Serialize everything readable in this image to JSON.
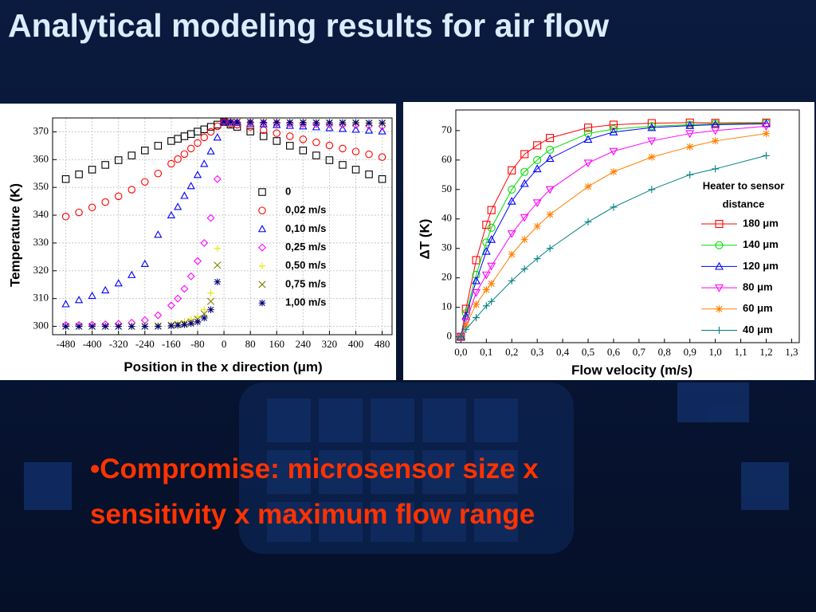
{
  "title": "Analytical modeling results for air flow",
  "bullet_lines": [
    "•Compromise: microsensor size x",
    "sensitivity x maximum flow range"
  ],
  "chart_data": [
    {
      "type": "scatter",
      "x_label": "Position in the x direction  (μm)",
      "y_label": "Temperature   (K)",
      "xlim": [
        -520,
        510
      ],
      "ylim": [
        297,
        375
      ],
      "xticks": [
        -480,
        -400,
        -320,
        -240,
        -160,
        -80,
        0,
        80,
        160,
        240,
        320,
        400,
        480
      ],
      "yticks": [
        300,
        310,
        320,
        330,
        340,
        350,
        360,
        370
      ],
      "grid": true,
      "x": [
        -480,
        -440,
        -400,
        -360,
        -320,
        -280,
        -240,
        -200,
        -160,
        -140,
        -120,
        -100,
        -80,
        -60,
        -40,
        -20,
        0,
        20,
        40,
        80,
        120,
        160,
        200,
        240,
        280,
        320,
        360,
        400,
        440,
        480
      ],
      "series": [
        {
          "name": "0",
          "color": "#000000",
          "marker": "square",
          "values": [
            353.0,
            354.7,
            356.4,
            358.1,
            359.8,
            361.5,
            363.3,
            365.0,
            366.7,
            367.5,
            368.4,
            369.2,
            370.1,
            370.9,
            371.8,
            372.6,
            373.5,
            372.6,
            371.8,
            370.1,
            368.4,
            366.7,
            365.0,
            363.3,
            361.5,
            359.8,
            358.1,
            356.4,
            354.7,
            353.0
          ]
        },
        {
          "name": "0,02 m/s",
          "color": "#ff0000",
          "marker": "circle",
          "values": [
            339.5,
            341,
            342.8,
            344.7,
            346.8,
            349.2,
            352,
            355,
            358.5,
            360.2,
            362,
            364,
            366,
            368,
            370,
            372,
            373.5,
            373,
            372.6,
            371.8,
            370.6,
            369.5,
            368.4,
            367.3,
            366.2,
            365.1,
            364,
            362.9,
            361.9,
            360.9
          ]
        },
        {
          "name": "0,10 m/s",
          "color": "#0000ff",
          "marker": "triangle",
          "values": [
            308,
            309.5,
            311,
            313,
            315.5,
            318.5,
            322.5,
            333,
            340,
            343,
            347,
            350.5,
            354.5,
            358.5,
            363,
            368,
            373.5,
            373.4,
            373.3,
            373,
            372.8,
            372.5,
            372.2,
            372,
            371.7,
            371.4,
            371.1,
            370.8,
            370.5,
            370.2
          ]
        },
        {
          "name": "0,25 m/s",
          "color": "#ff00ff",
          "marker": "diamond",
          "values": [
            300.5,
            300.5,
            300.6,
            300.7,
            300.9,
            301.3,
            302.2,
            304,
            307.5,
            310,
            313.5,
            318,
            323.5,
            330,
            339,
            353,
            373.5,
            373.5,
            373.4,
            373.3,
            373.2,
            373.1,
            373,
            372.9,
            372.8,
            372.7,
            372.6,
            372.4,
            372.2,
            372
          ]
        },
        {
          "name": "0,50 m/s",
          "color": "#e6e600",
          "marker": "plus",
          "values": [
            300,
            300,
            300,
            300,
            300,
            300,
            300.1,
            300.3,
            300.8,
            301.2,
            301.8,
            302.5,
            303.5,
            306,
            312,
            328,
            373.5,
            373.5,
            373.5,
            373.4,
            373.4,
            373.3,
            373.3,
            373.2,
            373.2,
            373.1,
            373.1,
            373,
            373,
            372.9
          ]
        },
        {
          "name": "0,75 m/s",
          "color": "#808000",
          "marker": "cross",
          "values": [
            300,
            300,
            300,
            300,
            300,
            300,
            300,
            300.1,
            300.4,
            300.7,
            301,
            301.6,
            302.5,
            304.5,
            309,
            322,
            373.5,
            373.5,
            373.5,
            373.4,
            373.4,
            373.4,
            373.3,
            373.3,
            373.3,
            373.2,
            373.2,
            373.2,
            373.1,
            373.1
          ]
        },
        {
          "name": "1,00 m/s",
          "color": "#000080",
          "marker": "star",
          "values": [
            300,
            300,
            300,
            300,
            300,
            300,
            300,
            300,
            300.2,
            300.4,
            300.6,
            301,
            301.6,
            303,
            306,
            316,
            373.5,
            373.5,
            373.5,
            373.5,
            373.4,
            373.4,
            373.4,
            373.4,
            373.3,
            373.3,
            373.3,
            373.3,
            373.2,
            373.2
          ]
        }
      ]
    },
    {
      "type": "line",
      "x_label": "Flow velocity  (m/s)",
      "y_label": "ΔT (K)",
      "legend_title": [
        "Heater to sensor",
        "distance"
      ],
      "xlim": [
        -0.02,
        1.33
      ],
      "ylim": [
        -2,
        77
      ],
      "xticks": [
        {
          "value": 0,
          "label": "0,0"
        },
        {
          "value": 0.1,
          "label": "0,1"
        },
        {
          "value": 0.2,
          "label": "0,2"
        },
        {
          "value": 0.3,
          "label": "0,3"
        },
        {
          "value": 0.4,
          "label": "0,4"
        },
        {
          "value": 0.5,
          "label": "0,5"
        },
        {
          "value": 0.6,
          "label": "0,6"
        },
        {
          "value": 0.7,
          "label": "0,7"
        },
        {
          "value": 0.8,
          "label": "0,8"
        },
        {
          "value": 0.9,
          "label": "0,9"
        },
        {
          "value": 1.0,
          "label": "1,0"
        },
        {
          "value": 1.1,
          "label": "1,1"
        },
        {
          "value": 1.2,
          "label": "1,2"
        },
        {
          "value": 1.3,
          "label": "1,3"
        }
      ],
      "yticks": [
        0,
        10,
        20,
        30,
        40,
        50,
        60,
        70
      ],
      "grid": false,
      "x": [
        0,
        0.02,
        0.06,
        0.1,
        0.12,
        0.2,
        0.25,
        0.3,
        0.35,
        0.5,
        0.6,
        0.75,
        0.9,
        1.0,
        1.2
      ],
      "series": [
        {
          "name": "180 μm",
          "color": "#ff0000",
          "marker": "square",
          "values": [
            0,
            9.5,
            26,
            38,
            43,
            56.5,
            62,
            65,
            67.5,
            71,
            72,
            72.5,
            72.7,
            72.6,
            72.7
          ]
        },
        {
          "name": "140 μm",
          "color": "#00dd00",
          "marker": "circle",
          "values": [
            0,
            8,
            21,
            32,
            37,
            50,
            56,
            60,
            63.5,
            69,
            70.5,
            71.5,
            72,
            72.3,
            72.5
          ]
        },
        {
          "name": "120 μm",
          "color": "#0000ff",
          "marker": "triangle",
          "values": [
            0,
            7,
            19,
            29,
            33,
            46,
            52,
            57,
            60.5,
            67,
            69.5,
            71,
            71.7,
            72,
            72.3
          ]
        },
        {
          "name": "80 μm",
          "color": "#ff00ff",
          "marker": "triangle-down",
          "values": [
            0,
            5,
            15,
            21,
            24,
            35,
            40.5,
            45.5,
            50,
            59,
            63,
            66.5,
            69,
            70,
            71.5
          ]
        },
        {
          "name": "60 μm",
          "color": "#ff8000",
          "marker": "star",
          "values": [
            0,
            4,
            11,
            16,
            18,
            28,
            33,
            37.5,
            41.5,
            51,
            56,
            61,
            64.5,
            66.5,
            69
          ]
        },
        {
          "name": "40 μm",
          "color": "#008080",
          "marker": "plus",
          "values": [
            0,
            2.5,
            6.5,
            10.5,
            12,
            19,
            23,
            26.5,
            30,
            39,
            44,
            50,
            55,
            57,
            61.5
          ]
        }
      ]
    }
  ]
}
